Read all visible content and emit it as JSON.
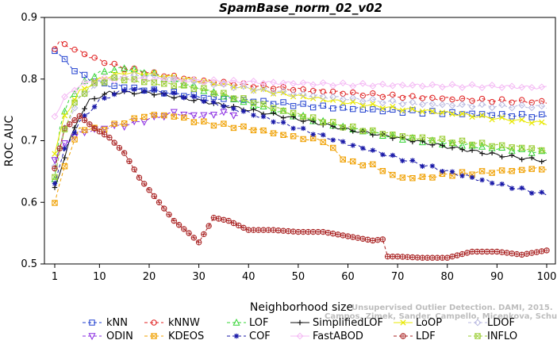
{
  "chart_data": {
    "type": "line",
    "title": "SpamBase_norm_02_v02",
    "xlabel": "Neighborhood size",
    "ylabel": "ROC AUC",
    "xlim": [
      1,
      100
    ],
    "ylim": [
      0.5,
      0.9
    ],
    "xticks": [
      1,
      10,
      20,
      30,
      40,
      50,
      60,
      70,
      80,
      90,
      100
    ],
    "yticks": [
      0.5,
      0.6,
      0.7,
      0.8,
      0.9
    ],
    "grid": false,
    "legend_position": "bottom",
    "watermark": [
      "Unsupervised Outlier Detection. DAMI, 2015.",
      "Campos, Zimek, Sander, Campello, Micenkova, Schubert, Assent, Houle"
    ],
    "series": [
      {
        "name": "kNN",
        "color": "#1f3fcf",
        "marker": "square",
        "dash": "4,3",
        "points": [
          [
            1,
            0.848
          ],
          [
            3,
            0.83
          ],
          [
            5,
            0.815
          ],
          [
            8,
            0.8
          ],
          [
            12,
            0.79
          ],
          [
            20,
            0.782
          ],
          [
            30,
            0.772
          ],
          [
            40,
            0.765
          ],
          [
            50,
            0.758
          ],
          [
            60,
            0.752
          ],
          [
            70,
            0.748
          ],
          [
            80,
            0.745
          ],
          [
            90,
            0.742
          ],
          [
            100,
            0.74
          ]
        ]
      },
      {
        "name": "kNNW",
        "color": "#e02020",
        "marker": "circle",
        "dash": "4,3",
        "points": [
          [
            1,
            0.85
          ],
          [
            2,
            0.86
          ],
          [
            5,
            0.848
          ],
          [
            10,
            0.83
          ],
          [
            15,
            0.818
          ],
          [
            20,
            0.81
          ],
          [
            30,
            0.798
          ],
          [
            40,
            0.79
          ],
          [
            50,
            0.783
          ],
          [
            60,
            0.777
          ],
          [
            70,
            0.772
          ],
          [
            80,
            0.768
          ],
          [
            90,
            0.765
          ],
          [
            100,
            0.763
          ]
        ]
      },
      {
        "name": "LOF",
        "color": "#35d435",
        "marker": "triangle",
        "dash": "4,3",
        "points": [
          [
            1,
            0.64
          ],
          [
            2,
            0.72
          ],
          [
            4,
            0.77
          ],
          [
            7,
            0.795
          ],
          [
            10,
            0.81
          ],
          [
            15,
            0.818
          ],
          [
            20,
            0.81
          ],
          [
            30,
            0.785
          ],
          [
            40,
            0.76
          ],
          [
            50,
            0.74
          ],
          [
            60,
            0.72
          ],
          [
            70,
            0.705
          ],
          [
            80,
            0.695
          ],
          [
            90,
            0.688
          ],
          [
            100,
            0.68
          ]
        ]
      },
      {
        "name": "SimplifiedLOF",
        "color": "#111111",
        "marker": "plus",
        "dash": "",
        "points": [
          [
            1,
            0.622
          ],
          [
            2,
            0.648
          ],
          [
            4,
            0.7
          ],
          [
            6,
            0.74
          ],
          [
            8,
            0.765
          ],
          [
            12,
            0.778
          ],
          [
            20,
            0.778
          ],
          [
            30,
            0.765
          ],
          [
            40,
            0.75
          ],
          [
            50,
            0.735
          ],
          [
            60,
            0.718
          ],
          [
            70,
            0.705
          ],
          [
            80,
            0.69
          ],
          [
            90,
            0.677
          ],
          [
            100,
            0.667
          ]
        ]
      },
      {
        "name": "LoOP",
        "color": "#e8e800",
        "marker": "x",
        "dash": "",
        "points": [
          [
            1,
            0.68
          ],
          [
            3,
            0.74
          ],
          [
            6,
            0.78
          ],
          [
            10,
            0.8
          ],
          [
            15,
            0.81
          ],
          [
            20,
            0.808
          ],
          [
            30,
            0.797
          ],
          [
            40,
            0.785
          ],
          [
            50,
            0.772
          ],
          [
            60,
            0.762
          ],
          [
            70,
            0.752
          ],
          [
            80,
            0.745
          ],
          [
            90,
            0.736
          ],
          [
            100,
            0.728
          ]
        ]
      },
      {
        "name": "LDOF",
        "color": "#b8b8e0",
        "marker": "diamond",
        "dash": "4,3",
        "points": [
          [
            1,
            0.66
          ],
          [
            3,
            0.72
          ],
          [
            6,
            0.77
          ],
          [
            10,
            0.795
          ],
          [
            15,
            0.805
          ],
          [
            20,
            0.805
          ],
          [
            30,
            0.795
          ],
          [
            40,
            0.785
          ],
          [
            50,
            0.775
          ],
          [
            60,
            0.768
          ],
          [
            70,
            0.762
          ],
          [
            80,
            0.758
          ],
          [
            90,
            0.756
          ],
          [
            100,
            0.755
          ]
        ]
      },
      {
        "name": "ODIN",
        "color": "#8a2be2",
        "marker": "triangle-down",
        "dash": "4,3",
        "points": [
          [
            1,
            0.67
          ],
          [
            3,
            0.695
          ],
          [
            6,
            0.712
          ],
          [
            10,
            0.72
          ],
          [
            15,
            0.725
          ],
          [
            20,
            0.735
          ],
          [
            25,
            0.745
          ],
          [
            30,
            0.74
          ],
          [
            35,
            0.745
          ],
          [
            38,
            0.742
          ]
        ]
      },
      {
        "name": "KDEOS",
        "color": "#f0a000",
        "marker": "square-x",
        "dash": "4,3",
        "points": [
          [
            1,
            0.598
          ],
          [
            3,
            0.66
          ],
          [
            6,
            0.72
          ],
          [
            10,
            0.718
          ],
          [
            15,
            0.73
          ],
          [
            20,
            0.742
          ],
          [
            25,
            0.74
          ],
          [
            30,
            0.73
          ],
          [
            40,
            0.72
          ],
          [
            50,
            0.705
          ],
          [
            55,
            0.7
          ],
          [
            60,
            0.665
          ],
          [
            65,
            0.66
          ],
          [
            70,
            0.64
          ],
          [
            75,
            0.64
          ],
          [
            80,
            0.645
          ],
          [
            90,
            0.65
          ],
          [
            100,
            0.655
          ]
        ]
      },
      {
        "name": "COF",
        "color": "#1a1aa8",
        "marker": "star",
        "dash": "4,3",
        "points": [
          [
            1,
            0.633
          ],
          [
            3,
            0.685
          ],
          [
            6,
            0.73
          ],
          [
            10,
            0.765
          ],
          [
            15,
            0.782
          ],
          [
            20,
            0.782
          ],
          [
            30,
            0.768
          ],
          [
            40,
            0.745
          ],
          [
            50,
            0.72
          ],
          [
            60,
            0.695
          ],
          [
            70,
            0.672
          ],
          [
            80,
            0.65
          ],
          [
            90,
            0.63
          ],
          [
            100,
            0.612
          ]
        ]
      },
      {
        "name": "FastABOD",
        "color": "#f4b8f4",
        "marker": "diamond",
        "dash": "",
        "points": [
          [
            1,
            0.74
          ],
          [
            3,
            0.77
          ],
          [
            6,
            0.79
          ],
          [
            10,
            0.8
          ],
          [
            15,
            0.8
          ],
          [
            20,
            0.8
          ],
          [
            30,
            0.797
          ],
          [
            40,
            0.795
          ],
          [
            50,
            0.793
          ],
          [
            60,
            0.791
          ],
          [
            70,
            0.79
          ],
          [
            80,
            0.789
          ],
          [
            90,
            0.788
          ],
          [
            100,
            0.786
          ]
        ]
      },
      {
        "name": "LDF",
        "color": "#a82020",
        "marker": "circle-plus",
        "dash": "4,3",
        "points": [
          [
            1,
            0.655
          ],
          [
            3,
            0.72
          ],
          [
            6,
            0.74
          ],
          [
            9,
            0.72
          ],
          [
            12,
            0.705
          ],
          [
            15,
            0.68
          ],
          [
            18,
            0.64
          ],
          [
            20,
            0.62
          ],
          [
            22,
            0.6
          ],
          [
            25,
            0.57
          ],
          [
            28,
            0.55
          ],
          [
            30,
            0.535
          ],
          [
            33,
            0.575
          ],
          [
            36,
            0.57
          ],
          [
            40,
            0.555
          ],
          [
            45,
            0.555
          ],
          [
            50,
            0.552
          ],
          [
            55,
            0.552
          ],
          [
            60,
            0.545
          ],
          [
            65,
            0.538
          ],
          [
            67,
            0.54
          ],
          [
            68,
            0.512
          ],
          [
            70,
            0.512
          ],
          [
            75,
            0.51
          ],
          [
            80,
            0.51
          ],
          [
            85,
            0.52
          ],
          [
            90,
            0.52
          ],
          [
            95,
            0.515
          ],
          [
            100,
            0.522
          ]
        ]
      },
      {
        "name": "INFLO",
        "color": "#9acd32",
        "marker": "square-x",
        "dash": "4,3",
        "points": [
          [
            1,
            0.64
          ],
          [
            3,
            0.72
          ],
          [
            5,
            0.76
          ],
          [
            8,
            0.788
          ],
          [
            12,
            0.8
          ],
          [
            15,
            0.8
          ],
          [
            20,
            0.795
          ],
          [
            30,
            0.785
          ],
          [
            40,
            0.765
          ],
          [
            50,
            0.742
          ],
          [
            60,
            0.722
          ],
          [
            70,
            0.708
          ],
          [
            80,
            0.7
          ],
          [
            90,
            0.692
          ],
          [
            100,
            0.685
          ]
        ]
      }
    ]
  }
}
